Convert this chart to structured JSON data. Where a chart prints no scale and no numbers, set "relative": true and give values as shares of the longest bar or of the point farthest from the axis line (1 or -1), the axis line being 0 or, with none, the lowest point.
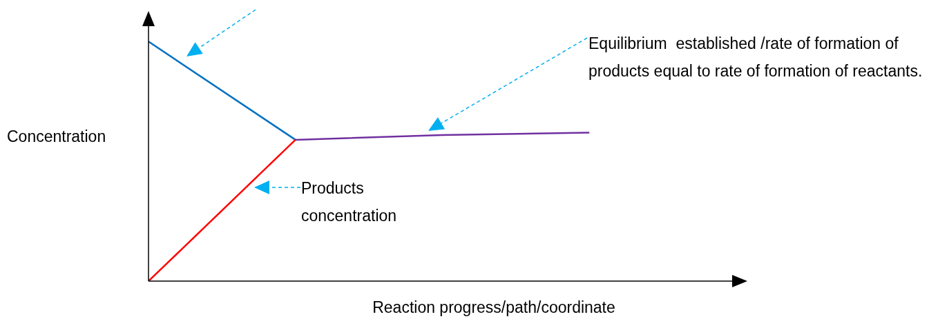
{
  "chart_data": {
    "type": "line",
    "relative": true,
    "xlabel": "Reaction progress/path/coordinate",
    "ylabel": "Concentration",
    "categories": [
      null,
      null,
      null,
      null,
      null
    ],
    "series": [
      {
        "color": "#0070c0",
        "values": [
          1,
          0.59,
          null,
          null,
          null
        ]
      },
      {
        "color": "#ff0000",
        "values": [
          0,
          0.59,
          null,
          null,
          null
        ]
      },
      {
        "color": "#7030a0",
        "values": [
          null,
          0.59,
          0.61,
          0.62,
          null
        ]
      }
    ],
    "annotations": [
      "Equilibrium  established /rate of formation of products equal to rate of formation of reactants.",
      "Products concentration"
    ]
  }
}
